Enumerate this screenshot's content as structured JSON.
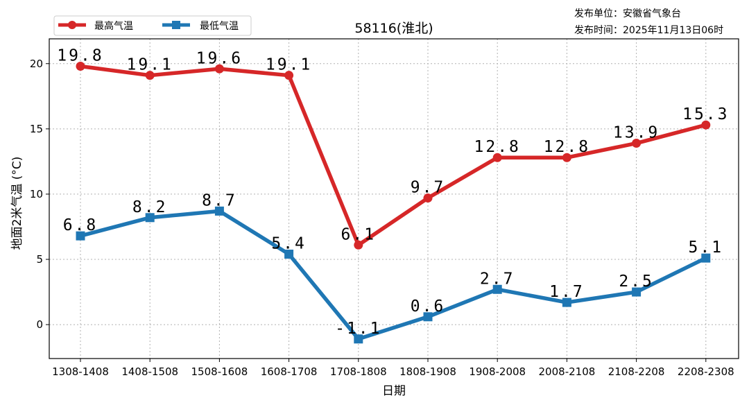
{
  "issuer": {
    "unit": "发布单位：安徽省气象台",
    "time": "发布时间：2025年11月13日06时"
  },
  "chart_data": {
    "type": "line",
    "title": "58116(淮北)",
    "xlabel": "日期",
    "ylabel": "地面2米气温 (°C)",
    "categories": [
      "1308-1408",
      "1408-1508",
      "1508-1608",
      "1608-1708",
      "1708-1808",
      "1808-1908",
      "1908-2008",
      "2008-2108",
      "2108-2208",
      "2208-2308"
    ],
    "ylim": [
      -2.6,
      21.9
    ],
    "yticks": [
      0,
      5,
      10,
      15,
      20
    ],
    "grid": true,
    "legend_position": "top-left",
    "series": [
      {
        "name": "最高气温",
        "color": "#d62728",
        "marker": "circle",
        "values": [
          19.8,
          19.1,
          19.6,
          19.1,
          6.1,
          9.7,
          12.8,
          12.8,
          13.9,
          15.3
        ],
        "labels": [
          "19.8",
          "19.1",
          "19.6",
          "19.1",
          "6.1",
          "9.7",
          "12.8",
          "12.8",
          "13.9",
          "15.3"
        ]
      },
      {
        "name": "最低气温",
        "color": "#1f77b4",
        "marker": "square",
        "values": [
          6.8,
          8.2,
          8.7,
          5.4,
          -1.1,
          0.6,
          2.7,
          1.7,
          2.5,
          5.1
        ],
        "labels": [
          "6.8",
          "8.2",
          "8.7",
          "5.4",
          "-1.1",
          "0.6",
          "2.7",
          "1.7",
          "2.5",
          "5.1"
        ]
      }
    ]
  }
}
